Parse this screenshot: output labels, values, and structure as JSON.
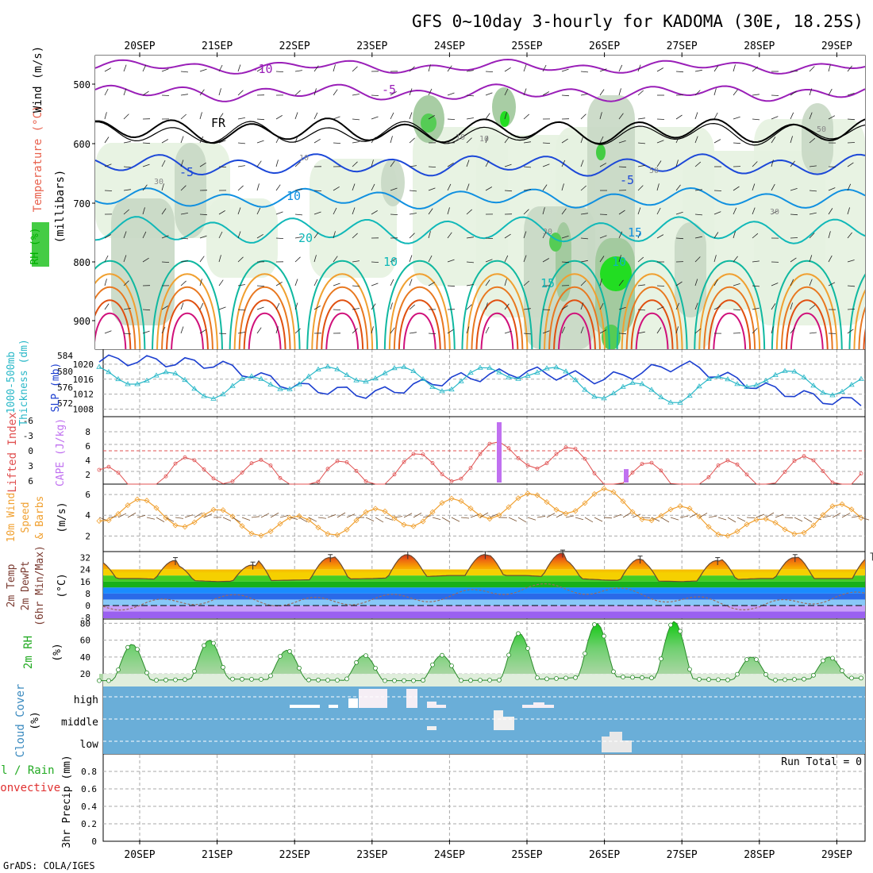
{
  "title": "GFS 0~10day 3-hourly for KADOMA (30E, 18.25S)",
  "credit": "GrADS: COLA/IGES",
  "run_total": "Run Total = 0",
  "dates": [
    "20SEP",
    "21SEP",
    "22SEP",
    "23SEP",
    "24SEP",
    "25SEP",
    "26SEP",
    "27SEP",
    "28SEP",
    "29SEP"
  ],
  "panels": {
    "upper": {
      "ylabel_parts": [
        "RH (%)",
        "Temperature (°C)",
        "Wind (m/s)"
      ],
      "ylabel_colors": [
        "#00b000",
        "#e8604c",
        "#000000"
      ],
      "unit_label": "(millibars)",
      "yticks": [
        "500",
        "600",
        "700",
        "800",
        "900"
      ],
      "temp_labels": [
        "-10",
        "-5",
        "FR",
        "-5",
        "-5",
        "10",
        "15",
        "20",
        "10",
        "15",
        "10"
      ],
      "rh_labels": [
        "30",
        "10",
        "10",
        "10",
        "30",
        "50",
        "30",
        "50"
      ]
    },
    "slp": {
      "ylabel_left": [
        "1000-500mb",
        "Thickness (dm)"
      ],
      "ylabel_right": "SLP (mb)",
      "left_ticks": [
        "584",
        "580",
        "576",
        "572"
      ],
      "right_ticks": [
        "1020",
        "1016",
        "1012",
        "1008"
      ]
    },
    "cape": {
      "ylabel_left": "Lifted Index",
      "ylabel_right": "CAPE (J/kg)",
      "left_ticks": [
        "-6",
        "-3",
        "0",
        "3",
        "6"
      ],
      "right_ticks": [
        "8",
        "6",
        "4",
        "2"
      ]
    },
    "wind10": {
      "ylabel_lines": [
        "10m Wind",
        "Speed",
        "& Barbs"
      ],
      "unit": "(m/s)",
      "ticks": [
        "6",
        "4",
        "2"
      ]
    },
    "temp2m": {
      "ylabel_lines": [
        "2m Temp",
        "2m DewPt",
        "(6hr Min/Max)"
      ],
      "unit": "(°C)",
      "ticks": [
        "32",
        "24",
        "16",
        "8",
        "0",
        "-8"
      ]
    },
    "rh2m": {
      "ylabel": "2m RH",
      "unit": "(%)",
      "ticks": [
        "80",
        "60",
        "40",
        "20"
      ]
    },
    "cloud": {
      "ylabel": "Cloud Cover",
      "unit": "(%)",
      "levels": [
        "high",
        "middle",
        "low"
      ]
    },
    "precip": {
      "ylabel_left": "Total / Rain",
      "ylabel_conv": "Convective",
      "ylabel": "3hr Precip (mm)",
      "ticks": [
        "0.8",
        "0.6",
        "0.4",
        "0.2",
        "0"
      ]
    }
  },
  "colors": {
    "slp": "#1c3fd0",
    "thickness": "#2ab8c8",
    "lifted_index": "#e05050",
    "cape": "#c070f0",
    "wind10": "#f0a030",
    "barbs": "#7a5230",
    "rh": "#22bb22",
    "cloud_bg": "#6aaed8",
    "purple": "#9a1fb8"
  },
  "chart_data": [
    {
      "type": "line",
      "title": "SLP (mb)",
      "x": [
        "20SEP",
        "21SEP",
        "22SEP",
        "23SEP",
        "24SEP",
        "25SEP",
        "26SEP",
        "27SEP",
        "28SEP",
        "29SEP"
      ],
      "series": [
        {
          "name": "SLP (mb)",
          "values": [
            1021,
            1020,
            1014,
            1012,
            1016,
            1018,
            1016,
            1020,
            1014,
            1010
          ]
        },
        {
          "name": "1000-500mb Thickness (dm)",
          "values": [
            579,
            575,
            578,
            580,
            577,
            581,
            575,
            574,
            579,
            576
          ]
        }
      ],
      "ylim": [
        1006,
        1024
      ]
    },
    {
      "type": "line",
      "title": "Lifted Index / CAPE (J/kg)",
      "x": [
        "20SEP",
        "21SEP",
        "22SEP",
        "23SEP",
        "24SEP",
        "25SEP",
        "26SEP",
        "27SEP",
        "28SEP",
        "29SEP"
      ],
      "series": [
        {
          "name": "Lifted Index",
          "values": [
            6,
            3,
            6,
            4,
            3,
            0,
            4,
            6,
            4,
            4
          ]
        }
      ],
      "cape_bars": [
        {
          "x": "24SEP 15Z",
          "value": 9
        },
        {
          "x": "26SEP 06Z",
          "value": 2
        }
      ]
    },
    {
      "type": "line",
      "title": "10m Wind Speed (m/s)",
      "x": [
        "20SEP",
        "21SEP",
        "22SEP",
        "23SEP",
        "24SEP",
        "25SEP",
        "26SEP",
        "27SEP",
        "28SEP",
        "29SEP"
      ],
      "series": [
        {
          "name": "10m Wind Speed",
          "values": [
            4.5,
            3.5,
            2.8,
            3.5,
            4.5,
            5.0,
            5.5,
            3.8,
            2.5,
            4.0
          ]
        }
      ],
      "ylim": [
        0.5,
        7
      ]
    },
    {
      "type": "area",
      "title": "2m Temp / DewPt (°C)",
      "x": [
        "20SEP",
        "21SEP",
        "22SEP",
        "23SEP",
        "24SEP",
        "25SEP",
        "26SEP",
        "27SEP",
        "28SEP",
        "29SEP"
      ],
      "series": [
        {
          "name": "2m Temp",
          "values": [
            18,
            16,
            17,
            18,
            20,
            20,
            17,
            16,
            18,
            18
          ]
        },
        {
          "name": "2m DewPt",
          "values": [
            0,
            5,
            2,
            4,
            6,
            12,
            10,
            4,
            -1,
            6
          ]
        }
      ],
      "daily_max": [
        30,
        27,
        32,
        34,
        34,
        35,
        31,
        30,
        32,
        33
      ],
      "ylim": [
        -9,
        36
      ]
    },
    {
      "type": "area",
      "title": "2m RH (%)",
      "x": [
        "20SEP",
        "21SEP",
        "22SEP",
        "23SEP",
        "24SEP",
        "25SEP",
        "26SEP",
        "27SEP",
        "28SEP",
        "29SEP"
      ],
      "series": [
        {
          "name": "2m RH",
          "values": [
            12,
            14,
            13,
            12,
            12,
            13,
            17,
            14,
            12,
            15
          ]
        }
      ],
      "daily_max": [
        55,
        60,
        48,
        42,
        42,
        68,
        80,
        82,
        40,
        40
      ],
      "ylim": [
        5,
        85
      ]
    },
    {
      "type": "bar",
      "title": "3hr Precip (mm)",
      "categories": [
        "20SEP",
        "21SEP",
        "22SEP",
        "23SEP",
        "24SEP",
        "25SEP",
        "26SEP",
        "27SEP",
        "28SEP",
        "29SEP"
      ],
      "values": [
        0,
        0,
        0,
        0,
        0,
        0,
        0,
        0,
        0,
        0
      ],
      "ylim": [
        0,
        1
      ]
    }
  ]
}
